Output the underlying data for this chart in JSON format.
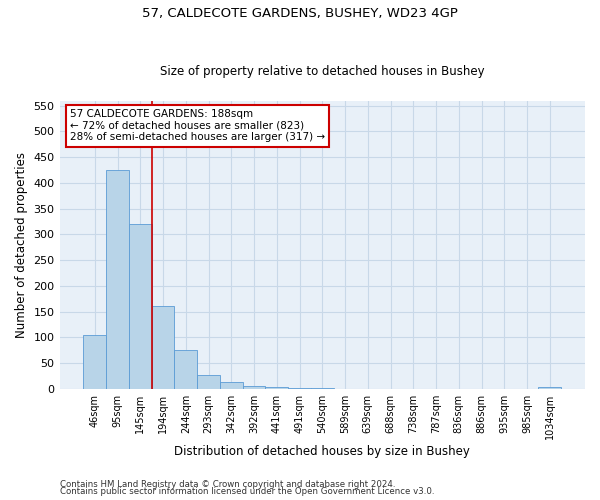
{
  "title": "57, CALDECOTE GARDENS, BUSHEY, WD23 4GP",
  "subtitle": "Size of property relative to detached houses in Bushey",
  "xlabel": "Distribution of detached houses by size in Bushey",
  "ylabel": "Number of detached properties",
  "footer_line1": "Contains HM Land Registry data © Crown copyright and database right 2024.",
  "footer_line2": "Contains public sector information licensed under the Open Government Licence v3.0.",
  "bar_labels": [
    "46sqm",
    "95sqm",
    "145sqm",
    "194sqm",
    "244sqm",
    "293sqm",
    "342sqm",
    "392sqm",
    "441sqm",
    "491sqm",
    "540sqm",
    "589sqm",
    "639sqm",
    "688sqm",
    "738sqm",
    "787sqm",
    "836sqm",
    "886sqm",
    "935sqm",
    "985sqm",
    "1034sqm"
  ],
  "bar_values": [
    105,
    425,
    320,
    160,
    75,
    27,
    14,
    5,
    3,
    1,
    1,
    0,
    0,
    0,
    0,
    0,
    0,
    0,
    0,
    0,
    4
  ],
  "bar_color": "#b8d4e8",
  "bar_edge_color": "#5b9bd5",
  "ylim": [
    0,
    560
  ],
  "yticks": [
    0,
    50,
    100,
    150,
    200,
    250,
    300,
    350,
    400,
    450,
    500,
    550
  ],
  "annotation_box_text_line1": "57 CALDECOTE GARDENS: 188sqm",
  "annotation_box_text_line2": "← 72% of detached houses are smaller (823)",
  "annotation_box_text_line3": "28% of semi-detached houses are larger (317) →",
  "annotation_box_color": "white",
  "annotation_box_edge_color": "#cc0000",
  "annotation_line_color": "#cc0000",
  "bg_color": "white",
  "grid_color": "#c8d8e8",
  "plot_bg_color": "#e8f0f8"
}
